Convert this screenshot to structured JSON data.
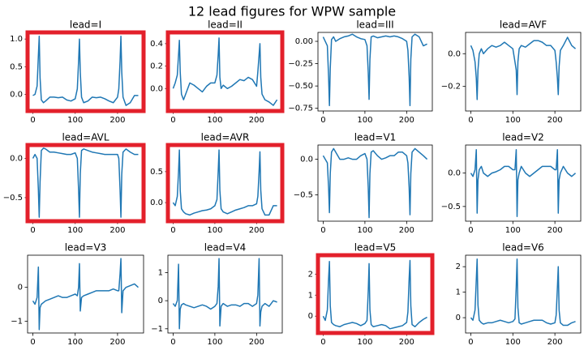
{
  "title": "12 lead figures for WPW sample",
  "chart_data": [
    {
      "type": "line",
      "title": "lead=I",
      "highlight": true,
      "color": "#1f77b4",
      "x": [
        0,
        5,
        10,
        13,
        15,
        17,
        20,
        25,
        30,
        40,
        50,
        60,
        70,
        80,
        90,
        100,
        105,
        108,
        110,
        112,
        115,
        120,
        130,
        140,
        150,
        160,
        170,
        180,
        190,
        200,
        203,
        206,
        208,
        210,
        213,
        220,
        230,
        240,
        249
      ],
      "values": [
        -0.02,
        0.0,
        0.15,
        0.7,
        1.05,
        0.3,
        -0.1,
        -0.15,
        -0.12,
        -0.05,
        -0.05,
        -0.06,
        -0.05,
        -0.1,
        -0.12,
        -0.08,
        0.1,
        0.6,
        1.0,
        0.4,
        -0.05,
        -0.15,
        -0.12,
        -0.05,
        -0.06,
        -0.05,
        -0.08,
        -0.12,
        -0.15,
        -0.05,
        0.1,
        0.6,
        1.05,
        0.4,
        -0.05,
        -0.2,
        -0.15,
        -0.02,
        -0.02
      ],
      "xlim": [
        -12.5,
        261.5
      ],
      "ylim": [
        -0.3,
        1.12
      ],
      "xticks": [
        0,
        100,
        200
      ],
      "yticks": [
        {
          "value": 0,
          "label": "0.0"
        },
        0.5,
        {
          "value": 1,
          "label": "1.0"
        }
      ]
    },
    {
      "type": "line",
      "title": "lead=II",
      "highlight": true,
      "color": "#1f77b4",
      "x": [
        0,
        5,
        10,
        13,
        15,
        17,
        20,
        25,
        30,
        40,
        50,
        60,
        70,
        80,
        90,
        100,
        105,
        108,
        110,
        112,
        115,
        120,
        130,
        140,
        150,
        160,
        170,
        180,
        190,
        200,
        203,
        206,
        208,
        210,
        213,
        220,
        230,
        240,
        249
      ],
      "values": [
        0.0,
        0.05,
        0.12,
        0.3,
        0.43,
        0.15,
        -0.05,
        -0.1,
        -0.05,
        0.05,
        0.03,
        0.0,
        -0.03,
        0.02,
        0.05,
        0.05,
        0.12,
        0.3,
        0.45,
        0.1,
        0.0,
        0.03,
        0.0,
        0.02,
        0.05,
        0.08,
        0.07,
        0.1,
        0.08,
        0.02,
        0.15,
        0.3,
        0.4,
        0.1,
        -0.05,
        -0.1,
        -0.12,
        -0.15,
        -0.1
      ],
      "xlim": [
        -12.5,
        261.5
      ],
      "ylim": [
        -0.2,
        0.5
      ],
      "xticks": [
        0,
        100,
        200
      ],
      "yticks": [
        {
          "value": 0,
          "label": "0.0"
        },
        0.2,
        0.4
      ]
    },
    {
      "type": "line",
      "title": "lead=III",
      "highlight": false,
      "color": "#1f77b4",
      "x": [
        0,
        5,
        10,
        13,
        15,
        17,
        20,
        25,
        30,
        40,
        50,
        60,
        70,
        80,
        90,
        100,
        105,
        108,
        110,
        112,
        115,
        120,
        130,
        140,
        150,
        160,
        170,
        180,
        190,
        200,
        203,
        206,
        208,
        210,
        213,
        220,
        230,
        240,
        249
      ],
      "values": [
        0.05,
        0.0,
        -0.05,
        -0.4,
        -0.72,
        -0.3,
        0.02,
        0.05,
        0.0,
        0.03,
        0.05,
        0.06,
        0.08,
        0.05,
        0.03,
        0.02,
        -0.05,
        -0.35,
        -0.65,
        -0.2,
        0.05,
        0.06,
        0.04,
        0.05,
        0.06,
        0.05,
        0.06,
        0.05,
        0.03,
        0.0,
        -0.1,
        -0.4,
        -0.72,
        -0.2,
        0.05,
        0.08,
        0.05,
        -0.05,
        -0.03
      ],
      "xlim": [
        -12.5,
        261.5
      ],
      "ylim": [
        -0.78,
        0.1
      ],
      "xticks": [
        0,
        100,
        200
      ],
      "yticks": [
        {
          "value": 0,
          "label": "0.00"
        },
        {
          "value": -0.25,
          "label": "−0.25"
        },
        {
          "value": -0.5,
          "label": "−0.50"
        },
        {
          "value": -0.75,
          "label": "−0.75"
        }
      ]
    },
    {
      "type": "line",
      "title": "lead=AVF",
      "highlight": false,
      "color": "#1f77b4",
      "x": [
        0,
        5,
        10,
        13,
        15,
        17,
        20,
        25,
        30,
        40,
        50,
        60,
        70,
        80,
        90,
        100,
        105,
        108,
        110,
        112,
        115,
        120,
        130,
        140,
        150,
        160,
        170,
        180,
        190,
        200,
        203,
        206,
        208,
        210,
        213,
        220,
        230,
        240,
        249
      ],
      "values": [
        0.05,
        0.02,
        -0.05,
        -0.15,
        -0.28,
        -0.1,
        0.0,
        0.03,
        0.0,
        0.03,
        0.05,
        0.04,
        0.05,
        0.07,
        0.05,
        0.03,
        -0.05,
        -0.1,
        -0.25,
        -0.05,
        0.03,
        0.05,
        0.04,
        0.06,
        0.08,
        0.08,
        0.07,
        0.05,
        0.05,
        0.02,
        -0.05,
        -0.15,
        -0.25,
        -0.08,
        0.02,
        0.05,
        0.1,
        0.05,
        0.03
      ],
      "xlim": [
        -12.5,
        261.5
      ],
      "ylim": [
        -0.35,
        0.13
      ],
      "xticks": [
        0,
        100,
        200
      ],
      "yticks": [
        {
          "value": -0.2,
          "label": "−0.2"
        },
        {
          "value": 0,
          "label": "0.0"
        }
      ]
    },
    {
      "type": "line",
      "title": "lead=AVL",
      "highlight": true,
      "color": "#1f77b4",
      "x": [
        0,
        5,
        10,
        13,
        15,
        17,
        20,
        25,
        30,
        40,
        50,
        60,
        70,
        80,
        90,
        100,
        105,
        108,
        110,
        112,
        115,
        120,
        130,
        140,
        150,
        160,
        170,
        180,
        190,
        200,
        203,
        206,
        208,
        210,
        213,
        220,
        230,
        240,
        249
      ],
      "values": [
        0.0,
        0.05,
        0.0,
        -0.4,
        -0.75,
        -0.3,
        0.1,
        0.13,
        0.12,
        0.08,
        0.08,
        0.07,
        0.06,
        0.05,
        0.05,
        0.07,
        0.0,
        -0.4,
        -0.75,
        -0.2,
        0.1,
        0.12,
        0.1,
        0.08,
        0.07,
        0.06,
        0.05,
        0.05,
        0.05,
        0.05,
        0.0,
        -0.4,
        -0.75,
        -0.2,
        0.08,
        0.12,
        0.08,
        0.05,
        0.05
      ],
      "xlim": [
        -12.5,
        261.5
      ],
      "ylim": [
        -0.8,
        0.17
      ],
      "xticks": [
        0,
        100,
        200
      ],
      "yticks": [
        {
          "value": -0.5,
          "label": "−0.5"
        },
        {
          "value": 0,
          "label": "0.0"
        }
      ]
    },
    {
      "type": "line",
      "title": "lead=AVR",
      "highlight": true,
      "color": "#1f77b4",
      "x": [
        0,
        5,
        10,
        13,
        15,
        17,
        20,
        25,
        30,
        40,
        50,
        60,
        70,
        80,
        90,
        100,
        105,
        108,
        110,
        112,
        115,
        120,
        130,
        140,
        150,
        160,
        170,
        180,
        190,
        200,
        203,
        206,
        208,
        210,
        213,
        220,
        230,
        240,
        249
      ],
      "values": [
        0.0,
        -0.05,
        0.1,
        0.5,
        0.85,
        0.2,
        -0.1,
        -0.15,
        -0.18,
        -0.2,
        -0.17,
        -0.15,
        -0.13,
        -0.12,
        -0.1,
        -0.05,
        0.05,
        0.5,
        0.85,
        0.2,
        -0.1,
        -0.15,
        -0.18,
        -0.15,
        -0.12,
        -0.1,
        -0.08,
        -0.05,
        -0.05,
        -0.02,
        0.1,
        0.5,
        0.82,
        0.2,
        -0.1,
        -0.2,
        -0.2,
        -0.05,
        -0.05
      ],
      "xlim": [
        -12.5,
        261.5
      ],
      "ylim": [
        -0.3,
        0.93
      ],
      "xticks": [
        0,
        100,
        200
      ],
      "yticks": [
        {
          "value": 0,
          "label": "0.0"
        },
        0.5
      ]
    },
    {
      "type": "line",
      "title": "lead=V1",
      "highlight": false,
      "color": "#1f77b4",
      "x": [
        0,
        5,
        10,
        13,
        15,
        17,
        20,
        25,
        30,
        40,
        50,
        60,
        70,
        80,
        90,
        100,
        105,
        108,
        110,
        112,
        115,
        120,
        130,
        140,
        150,
        160,
        170,
        180,
        190,
        200,
        203,
        206,
        208,
        210,
        213,
        220,
        230,
        240,
        249
      ],
      "values": [
        0.05,
        0.0,
        -0.05,
        -0.4,
        -0.75,
        -0.2,
        0.1,
        0.15,
        0.1,
        0.0,
        0.0,
        0.02,
        0.0,
        0.0,
        0.05,
        0.08,
        0.0,
        -0.4,
        -0.82,
        -0.2,
        0.1,
        0.12,
        0.05,
        0.0,
        0.02,
        0.05,
        0.05,
        0.1,
        0.1,
        0.05,
        -0.05,
        -0.4,
        -0.78,
        -0.2,
        0.1,
        0.15,
        0.1,
        0.05,
        0.0
      ],
      "xlim": [
        -12.5,
        261.5
      ],
      "ylim": [
        -0.87,
        0.2
      ],
      "xticks": [
        0,
        100,
        200
      ],
      "yticks": [
        {
          "value": -0.5,
          "label": "−0.5"
        },
        {
          "value": 0,
          "label": "0.0"
        }
      ]
    },
    {
      "type": "line",
      "title": "lead=V2",
      "highlight": false,
      "color": "#1f77b4",
      "x": [
        0,
        5,
        10,
        13,
        15,
        17,
        20,
        25,
        30,
        40,
        50,
        60,
        70,
        80,
        90,
        100,
        105,
        108,
        110,
        112,
        115,
        120,
        130,
        140,
        150,
        160,
        170,
        180,
        190,
        200,
        203,
        206,
        208,
        210,
        213,
        220,
        230,
        240,
        249
      ],
      "values": [
        0.0,
        -0.05,
        0.05,
        0.35,
        -0.6,
        -0.1,
        0.05,
        0.1,
        0.0,
        -0.05,
        0.0,
        0.02,
        0.05,
        0.1,
        0.1,
        0.05,
        0.05,
        0.35,
        -0.65,
        -0.1,
        0.0,
        0.1,
        0.0,
        -0.05,
        0.0,
        0.05,
        0.1,
        0.1,
        0.1,
        0.05,
        0.05,
        0.35,
        -0.6,
        -0.1,
        0.0,
        0.1,
        0.0,
        -0.05,
        0.0
      ],
      "xlim": [
        -12.5,
        261.5
      ],
      "ylim": [
        -0.72,
        0.42
      ],
      "xticks": [
        0,
        100,
        200
      ],
      "yticks": [
        {
          "value": -0.5,
          "label": "−0.5"
        },
        {
          "value": 0,
          "label": "0.0"
        }
      ]
    },
    {
      "type": "line",
      "title": "lead=V3",
      "highlight": false,
      "color": "#1f77b4",
      "x": [
        0,
        5,
        10,
        13,
        15,
        17,
        20,
        25,
        30,
        40,
        50,
        60,
        70,
        80,
        90,
        100,
        105,
        108,
        110,
        112,
        115,
        120,
        130,
        140,
        150,
        160,
        170,
        180,
        190,
        200,
        203,
        206,
        208,
        210,
        213,
        220,
        230,
        240,
        249
      ],
      "values": [
        -0.4,
        -0.5,
        -0.3,
        0.6,
        -1.25,
        -0.6,
        -0.5,
        -0.45,
        -0.4,
        -0.35,
        -0.3,
        -0.25,
        -0.3,
        -0.3,
        -0.25,
        -0.2,
        -0.25,
        0.0,
        0.7,
        -0.7,
        -0.3,
        -0.25,
        -0.2,
        -0.15,
        -0.1,
        -0.1,
        -0.1,
        -0.1,
        -0.05,
        -0.1,
        -0.1,
        0.4,
        0.85,
        -0.75,
        -0.1,
        0.0,
        0.05,
        0.1,
        0.0
      ],
      "xlim": [
        -12.5,
        261.5
      ],
      "ylim": [
        -1.35,
        0.95
      ],
      "xticks": [
        0,
        100,
        200
      ],
      "yticks": [
        {
          "value": -1,
          "label": "−1"
        },
        0
      ]
    },
    {
      "type": "line",
      "title": "lead=V4",
      "highlight": false,
      "color": "#1f77b4",
      "x": [
        0,
        5,
        10,
        13,
        15,
        17,
        20,
        25,
        30,
        40,
        50,
        60,
        70,
        80,
        90,
        100,
        105,
        108,
        110,
        112,
        115,
        120,
        130,
        140,
        150,
        160,
        170,
        180,
        190,
        200,
        203,
        206,
        208,
        210,
        213,
        220,
        230,
        240,
        249
      ],
      "values": [
        -0.1,
        -0.2,
        0.0,
        1.3,
        -1.0,
        -0.3,
        -0.15,
        -0.1,
        -0.15,
        -0.2,
        -0.25,
        -0.2,
        -0.15,
        -0.2,
        -0.3,
        -0.2,
        -0.1,
        0.5,
        1.5,
        -0.9,
        -0.2,
        -0.1,
        -0.2,
        -0.15,
        -0.15,
        -0.2,
        -0.1,
        -0.1,
        -0.2,
        -0.1,
        0.2,
        1.5,
        -0.9,
        -0.4,
        -0.2,
        -0.1,
        -0.2,
        0.0,
        -0.05
      ],
      "xlim": [
        -12.5,
        261.5
      ],
      "ylim": [
        -1.15,
        1.62
      ],
      "xticks": [
        0,
        100,
        200
      ],
      "yticks": [
        {
          "value": -1,
          "label": "−1"
        },
        0,
        1
      ]
    },
    {
      "type": "line",
      "title": "lead=V5",
      "highlight": true,
      "color": "#1f77b4",
      "x": [
        0,
        5,
        10,
        13,
        15,
        17,
        20,
        25,
        30,
        40,
        50,
        60,
        70,
        80,
        90,
        100,
        105,
        108,
        110,
        112,
        115,
        120,
        130,
        140,
        150,
        160,
        170,
        180,
        190,
        200,
        203,
        206,
        208,
        210,
        213,
        220,
        230,
        240,
        249
      ],
      "values": [
        0.0,
        -0.2,
        0.3,
        1.8,
        2.6,
        0.5,
        -0.3,
        -0.4,
        -0.45,
        -0.5,
        -0.4,
        -0.35,
        -0.3,
        -0.35,
        -0.45,
        -0.35,
        -0.2,
        1.2,
        2.5,
        0.3,
        -0.4,
        -0.5,
        -0.45,
        -0.4,
        -0.45,
        -0.6,
        -0.55,
        -0.5,
        -0.45,
        -0.3,
        0.2,
        1.8,
        2.65,
        0.5,
        -0.4,
        -0.5,
        -0.3,
        -0.15,
        -0.05
      ],
      "xlim": [
        -12.5,
        261.5
      ],
      "ylim": [
        -0.8,
        2.9
      ],
      "xticks": [
        0,
        100,
        200
      ],
      "yticks": [
        0,
        1,
        2
      ]
    },
    {
      "type": "line",
      "title": "lead=V6",
      "highlight": false,
      "color": "#1f77b4",
      "x": [
        0,
        5,
        10,
        13,
        15,
        17,
        20,
        25,
        30,
        40,
        50,
        60,
        70,
        80,
        90,
        100,
        105,
        108,
        110,
        112,
        115,
        120,
        130,
        140,
        150,
        160,
        170,
        180,
        190,
        200,
        203,
        206,
        208,
        210,
        213,
        220,
        230,
        240,
        249
      ],
      "values": [
        0.0,
        -0.1,
        0.3,
        1.5,
        2.3,
        0.5,
        -0.1,
        -0.2,
        -0.25,
        -0.2,
        -0.2,
        -0.15,
        -0.1,
        -0.15,
        -0.2,
        -0.15,
        -0.05,
        1.2,
        2.3,
        0.4,
        -0.2,
        -0.25,
        -0.2,
        -0.15,
        -0.1,
        -0.1,
        -0.1,
        -0.2,
        -0.25,
        -0.2,
        0.1,
        1.2,
        2.0,
        0.3,
        -0.2,
        -0.3,
        -0.3,
        -0.2,
        -0.15
      ],
      "xlim": [
        -12.5,
        261.5
      ],
      "ylim": [
        -0.6,
        2.45
      ],
      "xticks": [
        0,
        100,
        200
      ],
      "yticks": [
        0,
        1,
        2
      ]
    }
  ]
}
